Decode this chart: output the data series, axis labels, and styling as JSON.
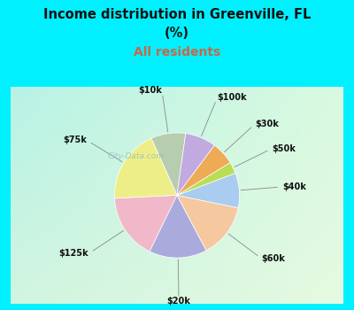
{
  "title_line1": "Income distribution in Greenville, FL",
  "title_line2": "(%)",
  "subtitle": "All residents",
  "title_color": "#111111",
  "subtitle_color": "#cc6644",
  "bg_cyan": "#00f0ff",
  "watermark": "City-Data.com",
  "slices": [
    {
      "label": "$10k",
      "value": 9,
      "color": "#b8cdb0"
    },
    {
      "label": "$75k",
      "value": 19,
      "color": "#eeee88"
    },
    {
      "label": "$125k",
      "value": 17,
      "color": "#f0b8c8"
    },
    {
      "label": "$20k",
      "value": 15,
      "color": "#aaaadd"
    },
    {
      "label": "$60k",
      "value": 14,
      "color": "#f5c8a0"
    },
    {
      "label": "$40k",
      "value": 9,
      "color": "#aaccee"
    },
    {
      "label": "$50k",
      "value": 3,
      "color": "#bbdd55"
    },
    {
      "label": "$30k",
      "value": 6,
      "color": "#eeaa55"
    },
    {
      "label": "$100k",
      "value": 8,
      "color": "#c0aae0"
    }
  ],
  "startangle": 82
}
